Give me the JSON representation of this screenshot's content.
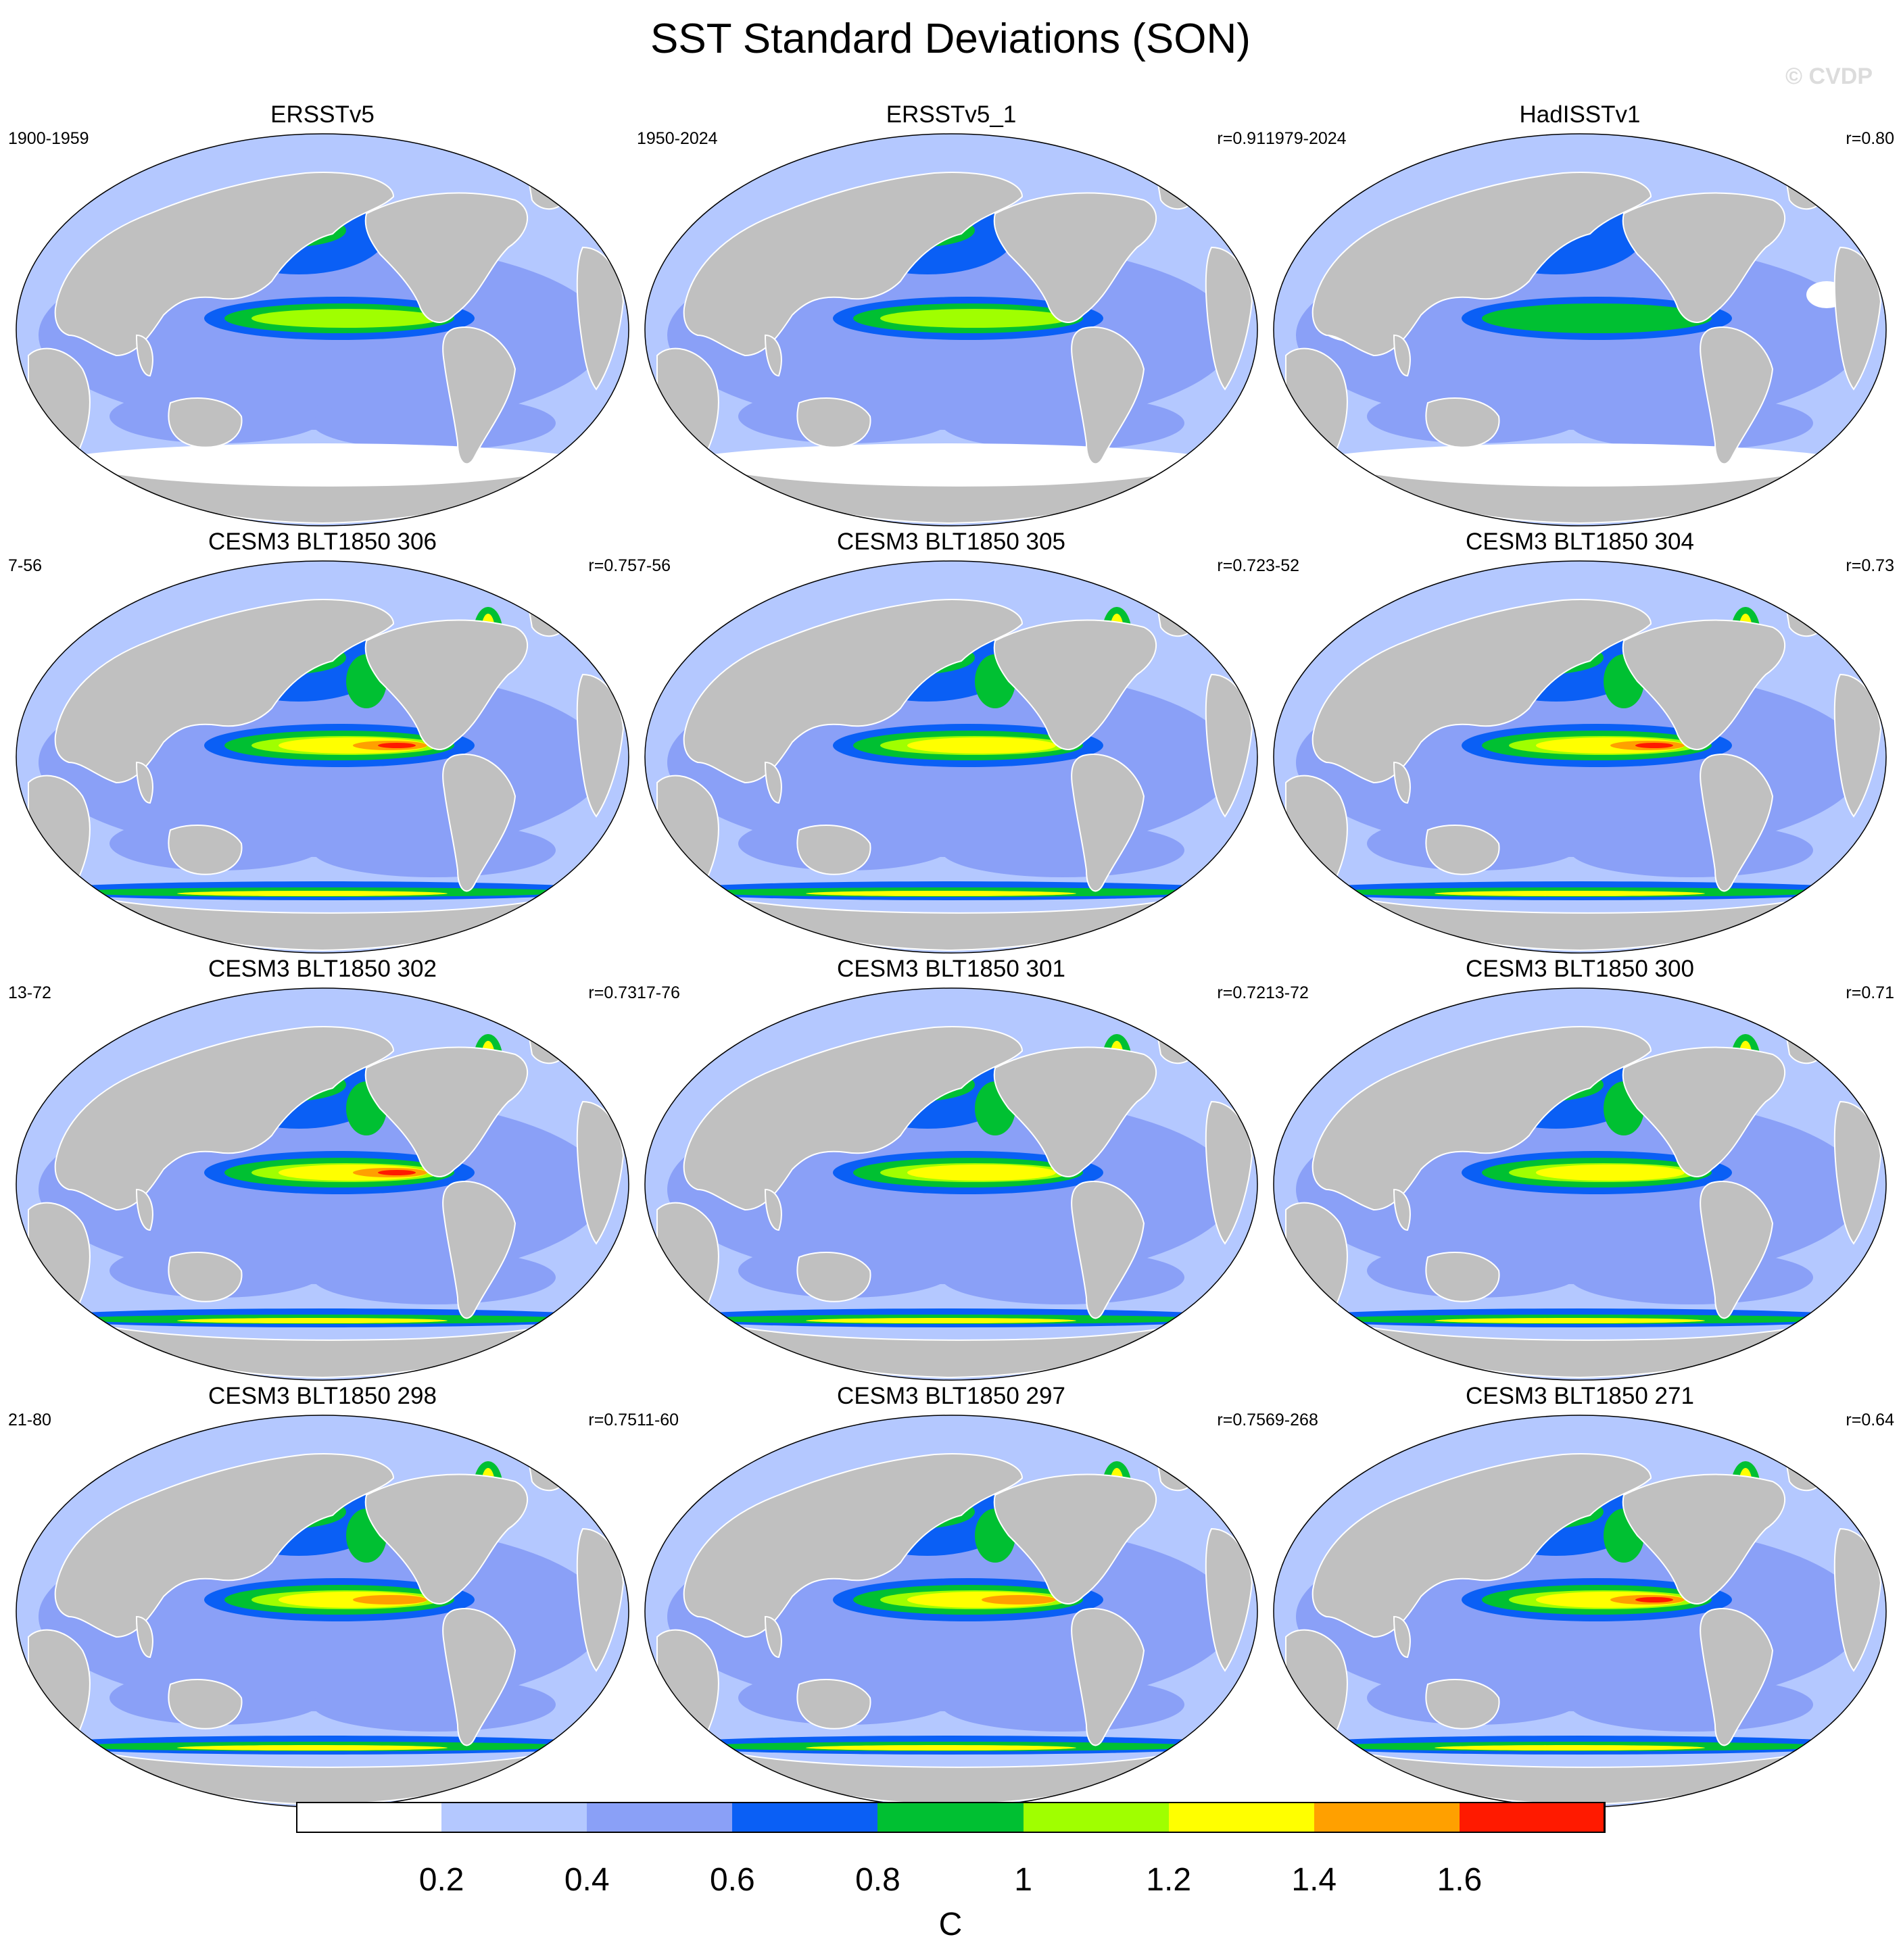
{
  "figure": {
    "title": "SST Standard Deviations (SON)",
    "credit": "© CVDP"
  },
  "colors": {
    "land": "#c0c0c0",
    "background": "#ffffff"
  },
  "panels": [
    {
      "title": "ERSSTv5",
      "period": "1900-1959",
      "r": "",
      "intensity": 0.45,
      "observed": true
    },
    {
      "title": "ERSSTv5_1",
      "period": "1950-2024",
      "r": "r=0.91",
      "intensity": 0.42,
      "observed": true
    },
    {
      "title": "HadISSTv1",
      "period": "1979-2024",
      "r": "r=0.80",
      "intensity": 0.3,
      "observed": true
    },
    {
      "title": "CESM3 BLT1850 306",
      "period": "7-56",
      "r": "r=0.75",
      "intensity": 1.0,
      "observed": false
    },
    {
      "title": "CESM3 BLT1850 305",
      "period": "7-56",
      "r": "r=0.72",
      "intensity": 0.85,
      "observed": false
    },
    {
      "title": "CESM3 BLT1850 304",
      "period": "3-52",
      "r": "r=0.73",
      "intensity": 1.0,
      "observed": false
    },
    {
      "title": "CESM3 BLT1850 302",
      "period": "13-72",
      "r": "r=0.73",
      "intensity": 1.0,
      "observed": false
    },
    {
      "title": "CESM3 BLT1850 301",
      "period": "17-76",
      "r": "r=0.72",
      "intensity": 0.85,
      "observed": false
    },
    {
      "title": "CESM3 BLT1850 300",
      "period": "13-72",
      "r": "r=0.71",
      "intensity": 0.8,
      "observed": false
    },
    {
      "title": "CESM3 BLT1850 298",
      "period": "21-80",
      "r": "r=0.75",
      "intensity": 0.9,
      "observed": false
    },
    {
      "title": "CESM3 BLT1850 297",
      "period": "11-60",
      "r": "r=0.75",
      "intensity": 0.92,
      "observed": false
    },
    {
      "title": "CESM3 BLT1850 271",
      "period": "69-268",
      "r": "r=0.64",
      "intensity": 1.0,
      "observed": false
    }
  ],
  "colorbar": {
    "unit": "C",
    "labels": [
      "0.2",
      "0.4",
      "0.6",
      "0.8",
      "1",
      "1.2",
      "1.4",
      "1.6"
    ],
    "colors": [
      "#ffffff",
      "#b4c8ff",
      "#8aa0f7",
      "#0a5ff5",
      "#00c032",
      "#a0ff00",
      "#ffff00",
      "#ffa000",
      "#ff1a00"
    ]
  }
}
